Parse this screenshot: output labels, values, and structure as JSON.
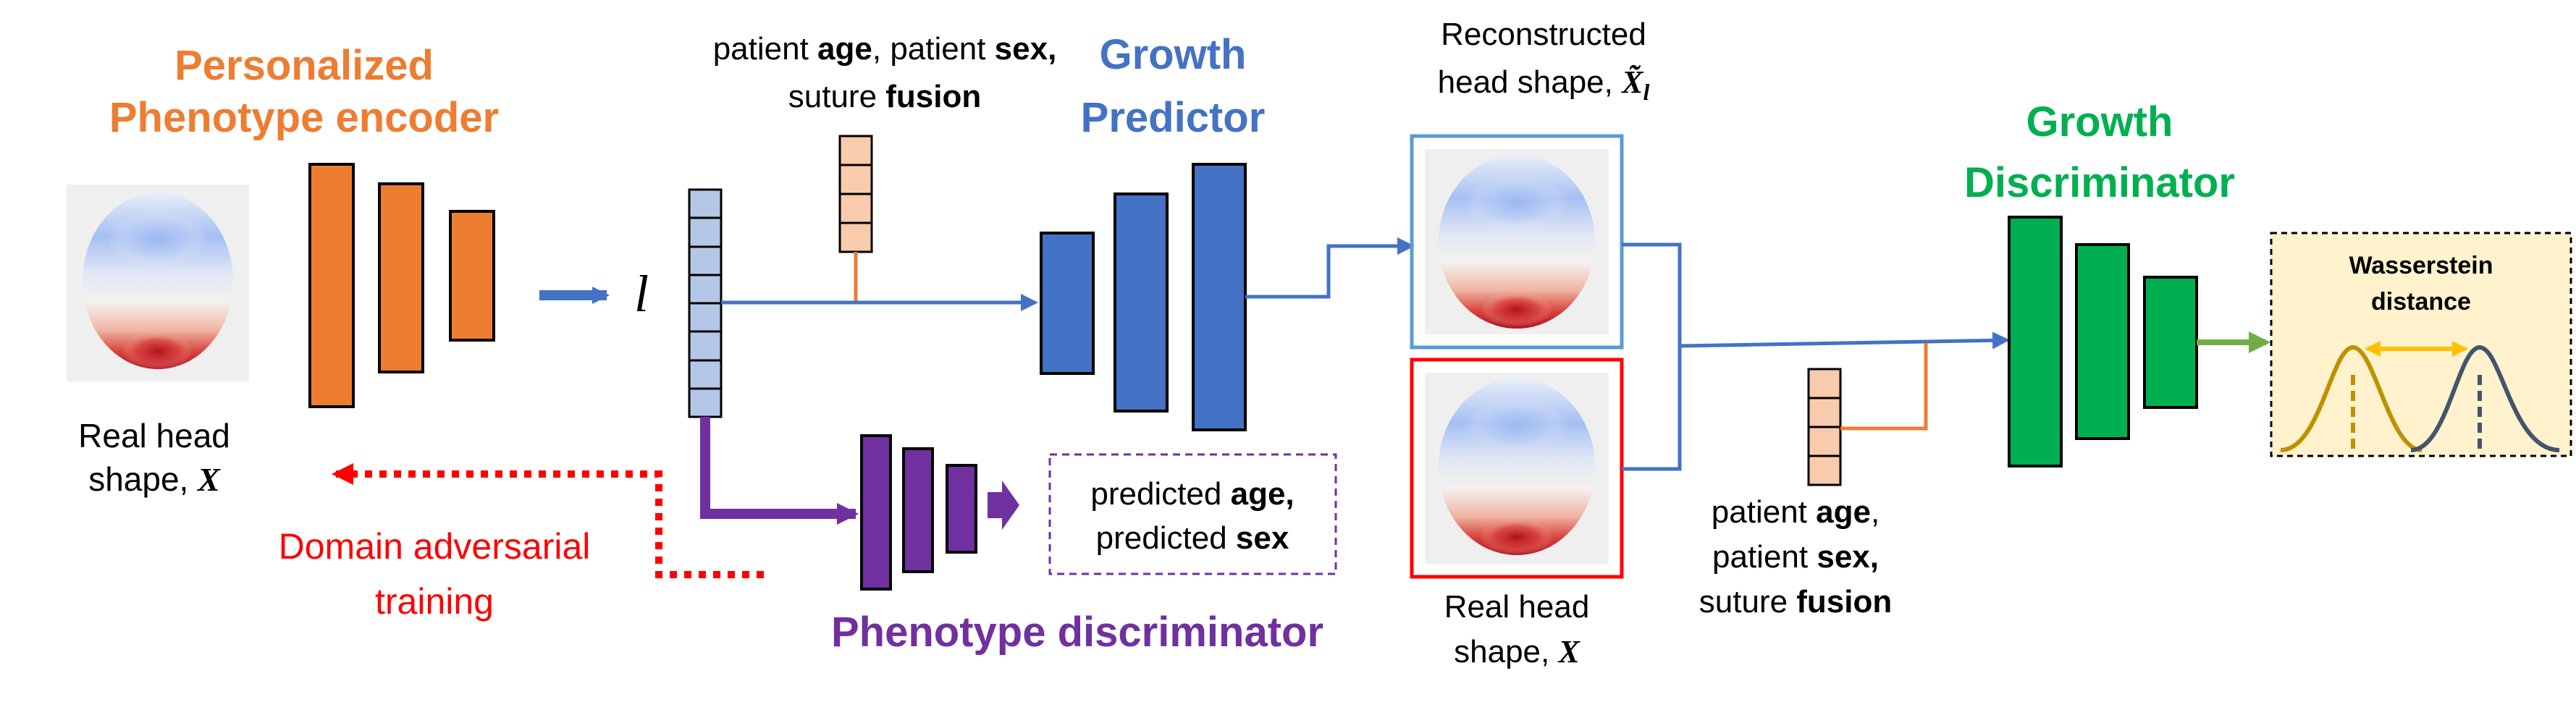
{
  "encoder": {
    "title_line1": "Personalized",
    "title_line2": "Phenotype encoder",
    "color": "#ED7D31"
  },
  "real_head_left": {
    "line1": "Real head",
    "line2_text": "shape, ",
    "line2_symbol": "X"
  },
  "latent": {
    "symbol": "l"
  },
  "conditions_top": {
    "line1_parts": [
      {
        "text": "patient ",
        "bold": false
      },
      {
        "text": "age",
        "bold": true
      },
      {
        "text": ", patient ",
        "bold": false
      },
      {
        "text": "sex,",
        "bold": true
      }
    ],
    "line2_parts": [
      {
        "text": "suture ",
        "bold": false
      },
      {
        "text": "fusion",
        "bold": true
      }
    ]
  },
  "growth_predictor": {
    "title_line1": "Growth",
    "title_line2": "Predictor",
    "color": "#4472C4"
  },
  "reconstructed": {
    "line1": "Reconstructed",
    "line2_text": "head shape, ",
    "line2_symbol": "X̃",
    "line2_subscript": "l"
  },
  "real_head_middle": {
    "line1": "Real head",
    "line2_text": "shape, ",
    "line2_symbol": "X"
  },
  "growth_discriminator": {
    "title_line1": "Growth",
    "title_line2": "Discriminator",
    "color": "#00B050"
  },
  "wasserstein": {
    "line1": "Wasserstein",
    "line2": "distance"
  },
  "conditions_bottom": {
    "line1_parts": [
      {
        "text": "patient ",
        "bold": false
      },
      {
        "text": "age",
        "bold": true
      },
      {
        "text": ",",
        "bold": false
      }
    ],
    "line2_parts": [
      {
        "text": "patient ",
        "bold": false
      },
      {
        "text": "sex,",
        "bold": true
      }
    ],
    "line3_parts": [
      {
        "text": "suture ",
        "bold": false
      },
      {
        "text": "fusion",
        "bold": true
      }
    ]
  },
  "predicted_box": {
    "line1_parts": [
      {
        "text": "predicted ",
        "bold": false
      },
      {
        "text": "age,",
        "bold": true
      }
    ],
    "line2_parts": [
      {
        "text": "predicted ",
        "bold": false
      },
      {
        "text": "sex",
        "bold": true
      }
    ]
  },
  "phenotype_discriminator": {
    "title": "Phenotype discriminator",
    "color": "#7030A0"
  },
  "domain_adversarial": {
    "line1": "Domain adversarial",
    "line2": "training",
    "color": "#FF0000"
  }
}
